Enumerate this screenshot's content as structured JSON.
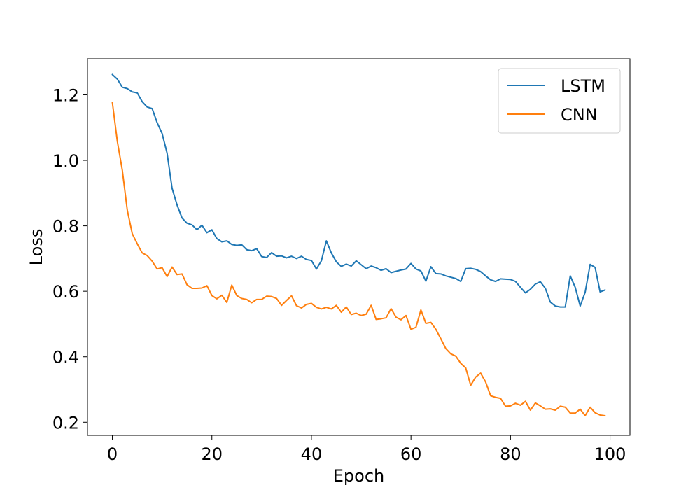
{
  "chart_data": {
    "type": "line",
    "title": "",
    "xlabel": "Epoch",
    "ylabel": "Loss",
    "xlim": [
      -5,
      104
    ],
    "ylim": [
      0.16,
      1.31
    ],
    "xticks": [
      0,
      20,
      40,
      60,
      80,
      100
    ],
    "yticks": [
      0.2,
      0.4,
      0.6,
      0.8,
      1.0,
      1.2
    ],
    "ytick_labels": [
      "0.2",
      "0.4",
      "0.6",
      "0.8",
      "1.0",
      "1.2"
    ],
    "grid": false,
    "legend_position": "top-right",
    "series": [
      {
        "name": "LSTM",
        "color": "#1f77b4",
        "x_start": 0,
        "values": [
          1.262,
          1.248,
          1.223,
          1.219,
          1.209,
          1.206,
          1.179,
          1.163,
          1.158,
          1.115,
          1.082,
          1.022,
          0.915,
          0.864,
          0.824,
          0.808,
          0.803,
          0.788,
          0.802,
          0.779,
          0.788,
          0.761,
          0.751,
          0.754,
          0.743,
          0.74,
          0.742,
          0.727,
          0.724,
          0.73,
          0.706,
          0.703,
          0.718,
          0.707,
          0.708,
          0.702,
          0.707,
          0.7,
          0.707,
          0.697,
          0.694,
          0.668,
          0.693,
          0.754,
          0.717,
          0.69,
          0.676,
          0.683,
          0.677,
          0.693,
          0.681,
          0.669,
          0.677,
          0.672,
          0.664,
          0.669,
          0.657,
          0.661,
          0.665,
          0.668,
          0.685,
          0.668,
          0.662,
          0.631,
          0.675,
          0.654,
          0.653,
          0.647,
          0.643,
          0.639,
          0.63,
          0.669,
          0.67,
          0.667,
          0.66,
          0.647,
          0.635,
          0.63,
          0.638,
          0.637,
          0.636,
          0.63,
          0.612,
          0.595,
          0.606,
          0.622,
          0.629,
          0.609,
          0.567,
          0.555,
          0.552,
          0.552,
          0.647,
          0.612,
          0.555,
          0.597,
          0.682,
          0.673,
          0.598,
          0.604
        ]
      },
      {
        "name": "CNN",
        "color": "#ff7f0e",
        "x_start": 0,
        "values": [
          1.177,
          1.058,
          0.97,
          0.848,
          0.776,
          0.745,
          0.717,
          0.709,
          0.692,
          0.668,
          0.672,
          0.645,
          0.674,
          0.651,
          0.653,
          0.62,
          0.609,
          0.609,
          0.61,
          0.617,
          0.587,
          0.577,
          0.588,
          0.566,
          0.619,
          0.587,
          0.578,
          0.575,
          0.565,
          0.575,
          0.575,
          0.585,
          0.584,
          0.578,
          0.557,
          0.572,
          0.586,
          0.556,
          0.549,
          0.56,
          0.563,
          0.551,
          0.546,
          0.551,
          0.546,
          0.557,
          0.536,
          0.552,
          0.529,
          0.533,
          0.526,
          0.53,
          0.557,
          0.514,
          0.516,
          0.519,
          0.547,
          0.521,
          0.513,
          0.526,
          0.484,
          0.49,
          0.543,
          0.502,
          0.505,
          0.484,
          0.455,
          0.425,
          0.409,
          0.402,
          0.38,
          0.366,
          0.313,
          0.338,
          0.35,
          0.323,
          0.281,
          0.276,
          0.273,
          0.249,
          0.25,
          0.258,
          0.252,
          0.264,
          0.237,
          0.259,
          0.25,
          0.24,
          0.241,
          0.237,
          0.249,
          0.246,
          0.228,
          0.228,
          0.24,
          0.22,
          0.246,
          0.229,
          0.222,
          0.22
        ]
      }
    ]
  }
}
